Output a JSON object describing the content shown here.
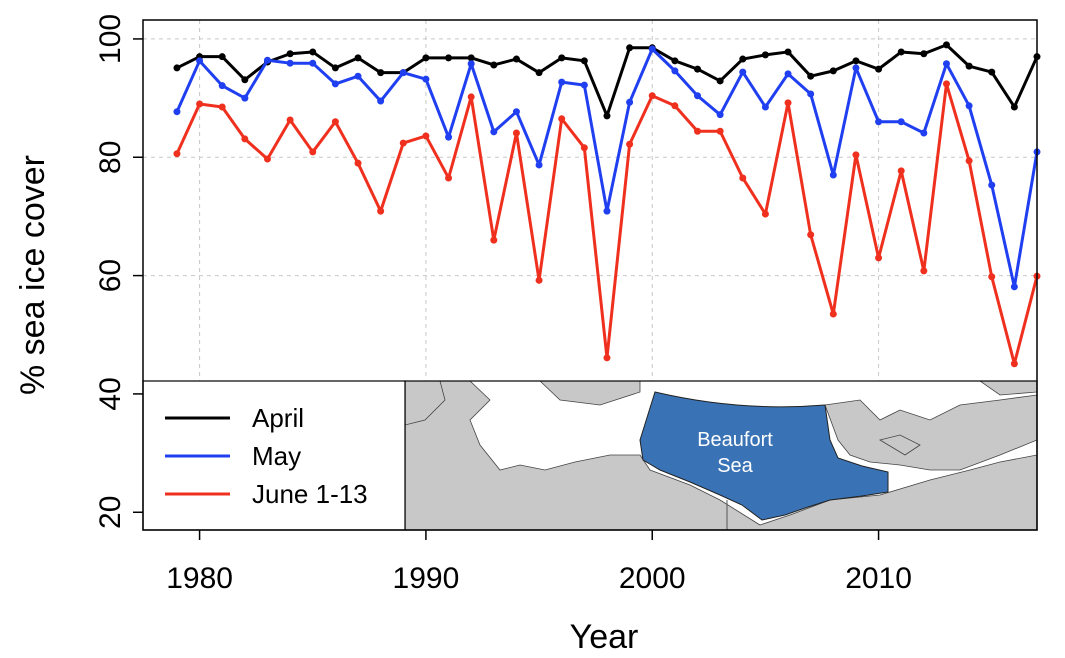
{
  "chart_data": {
    "type": "line",
    "x_label": "Year",
    "y_label": "% sea ice cover",
    "x": [
      1979,
      1980,
      1981,
      1982,
      1983,
      1984,
      1985,
      1986,
      1987,
      1988,
      1989,
      1990,
      1991,
      1992,
      1993,
      1994,
      1995,
      1996,
      1997,
      1998,
      1999,
      2000,
      2001,
      2002,
      2003,
      2004,
      2005,
      2006,
      2007,
      2008,
      2009,
      2010,
      2011,
      2012,
      2013,
      2014,
      2015,
      2016,
      2017
    ],
    "series": [
      {
        "name": "April",
        "color": "#000000",
        "values": [
          95.1,
          97.0,
          97.0,
          93.1,
          96.1,
          97.5,
          97.8,
          95.1,
          96.8,
          94.3,
          94.3,
          96.8,
          96.8,
          96.8,
          95.6,
          96.6,
          94.3,
          96.8,
          96.3,
          87.0,
          98.5,
          98.5,
          96.3,
          94.9,
          92.9,
          96.6,
          97.3,
          97.8,
          93.7,
          94.6,
          96.3,
          94.9,
          97.8,
          97.5,
          99.0,
          95.4,
          94.4,
          88.5,
          97.0
        ]
      },
      {
        "name": "May",
        "color": "#1f3ff0",
        "values": [
          87.7,
          96.3,
          92.1,
          90.0,
          96.4,
          95.9,
          95.9,
          92.4,
          93.7,
          89.5,
          94.3,
          93.2,
          83.4,
          95.8,
          84.3,
          87.7,
          78.7,
          92.7,
          92.2,
          70.9,
          89.3,
          98.3,
          94.6,
          90.4,
          87.2,
          94.4,
          88.5,
          94.1,
          90.7,
          77.0,
          95.1,
          86.0,
          86.0,
          84.1,
          95.8,
          88.7,
          75.3,
          58.1,
          80.9
        ]
      },
      {
        "name": "June 1-13",
        "color": "#f0301e",
        "values": [
          80.6,
          89.0,
          88.5,
          83.1,
          79.7,
          86.3,
          80.9,
          86.0,
          79.0,
          70.9,
          82.4,
          83.6,
          76.5,
          90.2,
          66.0,
          84.1,
          59.2,
          86.5,
          81.6,
          46.1,
          82.2,
          90.4,
          88.7,
          84.4,
          84.4,
          76.5,
          70.4,
          89.2,
          66.9,
          53.5,
          80.4,
          63.0,
          77.7,
          60.8,
          92.4,
          79.4,
          59.8,
          45.1,
          59.9
        ]
      }
    ],
    "xlim": [
      1977.5,
      2017
    ],
    "ylim": [
      17,
      103.2
    ],
    "xticks": [
      1980,
      1990,
      2000,
      2010
    ],
    "yticks": [
      20,
      40,
      60,
      80,
      100
    ],
    "grid": true,
    "legend": "lower left",
    "map_label": [
      "Beaufort",
      "Sea"
    ]
  }
}
